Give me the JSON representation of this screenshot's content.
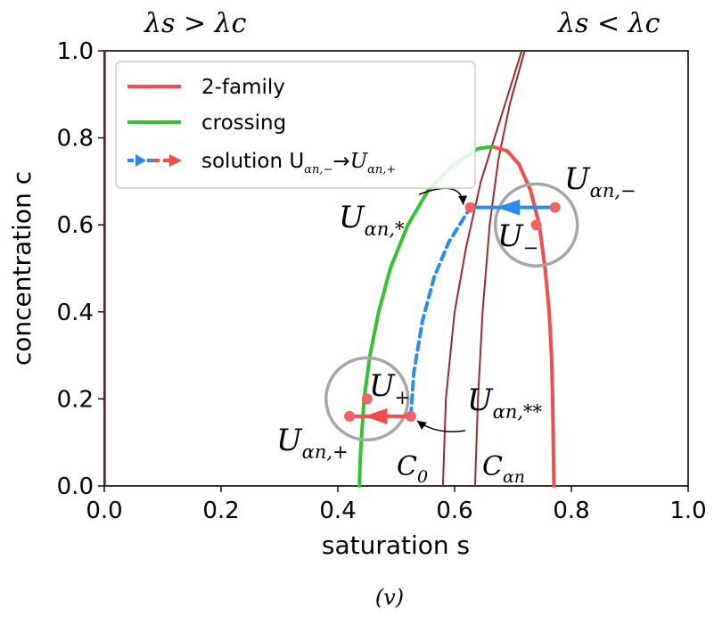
{
  "chart_data": {
    "type": "line",
    "xlabel": "saturation s",
    "ylabel": "concentration c",
    "xlim": [
      0.0,
      1.0
    ],
    "ylim": [
      0.0,
      1.0
    ],
    "x_ticks": [
      "0.0",
      "0.2",
      "0.4",
      "0.6",
      "0.8",
      "1.0"
    ],
    "y_ticks": [
      "0.0",
      "0.2",
      "0.4",
      "0.6",
      "0.8",
      "1.0"
    ],
    "grid": false,
    "legend_position": "top-left",
    "regions": [
      {
        "text": "λs > λc",
        "side": "left"
      },
      {
        "text": "λs < λc",
        "side": "right"
      }
    ],
    "series": [
      {
        "name": "2-family",
        "color": "#f24c4c",
        "style": "solid",
        "points": [
          [
            0.665,
            0.78
          ],
          [
            0.69,
            0.77
          ],
          [
            0.71,
            0.74
          ],
          [
            0.73,
            0.68
          ],
          [
            0.745,
            0.6
          ],
          [
            0.755,
            0.5
          ],
          [
            0.762,
            0.4
          ],
          [
            0.766,
            0.3
          ],
          [
            0.768,
            0.2
          ],
          [
            0.769,
            0.1
          ],
          [
            0.77,
            0.0
          ]
        ]
      },
      {
        "name": "crossing",
        "color": "#33c233",
        "style": "solid",
        "points": [
          [
            0.437,
            0.0
          ],
          [
            0.438,
            0.05
          ],
          [
            0.44,
            0.1
          ],
          [
            0.445,
            0.2
          ],
          [
            0.455,
            0.3
          ],
          [
            0.47,
            0.4
          ],
          [
            0.49,
            0.5
          ],
          [
            0.52,
            0.6
          ],
          [
            0.555,
            0.68
          ],
          [
            0.6,
            0.74
          ],
          [
            0.64,
            0.775
          ],
          [
            0.665,
            0.78
          ]
        ]
      },
      {
        "name": "solution U_{α_n,−}→U_{α_n,+}",
        "color": "#2b8ce8",
        "style": "dashed",
        "points": [
          [
            0.525,
            0.16
          ],
          [
            0.53,
            0.26
          ],
          [
            0.545,
            0.38
          ],
          [
            0.565,
            0.48
          ],
          [
            0.59,
            0.56
          ],
          [
            0.627,
            0.64
          ]
        ]
      }
    ],
    "boundary_curves": [
      {
        "label": "C0",
        "color": "#9b2a2a",
        "points": [
          [
            0.58,
            0.0
          ],
          [
            0.585,
            0.2
          ],
          [
            0.6,
            0.4
          ],
          [
            0.62,
            0.55
          ],
          [
            0.645,
            0.7
          ],
          [
            0.68,
            0.85
          ],
          [
            0.715,
            1.0
          ]
        ]
      },
      {
        "label": "Cαn",
        "color": "#9b2a2a",
        "points": [
          [
            0.635,
            0.0
          ],
          [
            0.64,
            0.2
          ],
          [
            0.648,
            0.4
          ],
          [
            0.66,
            0.6
          ],
          [
            0.675,
            0.75
          ],
          [
            0.695,
            0.88
          ],
          [
            0.72,
            1.0
          ]
        ]
      }
    ],
    "points": [
      {
        "id": "U_an_minus",
        "label": "U_{α_n,−}",
        "x": 0.772,
        "y": 0.64,
        "color": "#f26262"
      },
      {
        "id": "U_an_star",
        "label": "U_{α_n,*}",
        "x": 0.627,
        "y": 0.64,
        "color": "#f26262"
      },
      {
        "id": "U_minus",
        "label": "U_−",
        "x": 0.74,
        "y": 0.6,
        "color": "#f26262"
      },
      {
        "id": "U_plus",
        "label": "U_+",
        "x": 0.45,
        "y": 0.2,
        "color": "#f26262"
      },
      {
        "id": "U_an_plus",
        "label": "U_{α_n,+}",
        "x": 0.42,
        "y": 0.16,
        "color": "#f26262"
      },
      {
        "id": "U_an_starstar",
        "label": "U_{α_n,**}",
        "x": 0.525,
        "y": 0.16,
        "color": "#f26262"
      }
    ],
    "circles": [
      {
        "center_x": 0.74,
        "center_y": 0.6,
        "color": "#a6a6a6"
      },
      {
        "center_x": 0.45,
        "center_y": 0.2,
        "color": "#a6a6a6"
      }
    ],
    "arrows": [
      {
        "from": [
          0.772,
          0.64
        ],
        "to": [
          0.627,
          0.64
        ],
        "color": "#2b8ce8"
      },
      {
        "from": [
          0.525,
          0.16
        ],
        "to": [
          0.42,
          0.16
        ],
        "color": "#f24c4c"
      }
    ],
    "labels": {
      "U_an_minus": {
        "base": "U",
        "sub": "αn,−"
      },
      "U_an_star": {
        "base": "U",
        "sub": "αn,*"
      },
      "U_minus": {
        "base": "U",
        "sub": "−"
      },
      "U_plus": {
        "base": "U",
        "sub": "+"
      },
      "U_an_plus": {
        "base": "U",
        "sub": "αn,+"
      },
      "U_an_starstar": {
        "base": "U",
        "sub": "αn,**"
      },
      "C0": {
        "base": "C",
        "sub": "0"
      },
      "Cαn": {
        "base": "C",
        "sub": "αn"
      }
    },
    "legend": [
      {
        "text": "2-family"
      },
      {
        "text": "crossing"
      },
      {
        "text": "solution U",
        "sub1": "αn,−",
        "arrow": "→",
        "text2": "U",
        "sub2": "αn,+"
      }
    ],
    "caption": "(v)"
  }
}
